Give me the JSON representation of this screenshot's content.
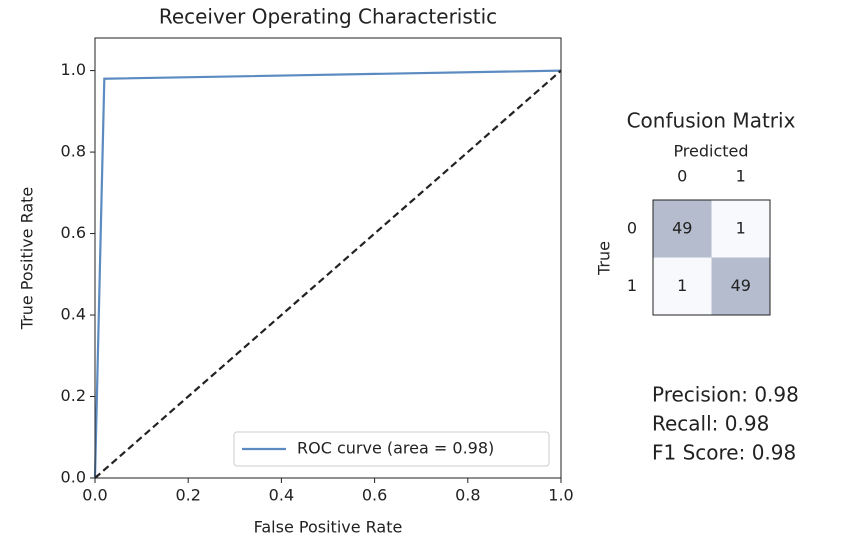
{
  "chart_data": [
    {
      "type": "line",
      "title": "Receiver Operating Characteristic",
      "xlabel": "False Positive Rate",
      "ylabel": "True Positive Rate",
      "x": [
        0,
        0.02,
        1
      ],
      "series": [
        {
          "name": "ROC curve (area = 0.98)",
          "color": "#5b8bc0",
          "values": [
            0,
            0.98,
            1
          ]
        },
        {
          "color": "#222222",
          "dash": true,
          "values": [
            0,
            0.02,
            1
          ]
        }
      ],
      "xlim": [
        0,
        1
      ],
      "ylim": [
        0,
        1.08
      ],
      "xticks": [
        {
          "value": 0,
          "label": "0.0"
        },
        0.2,
        0.4,
        0.6,
        0.8,
        {
          "value": 1,
          "label": "1.0"
        }
      ],
      "yticks": [
        {
          "value": 0,
          "label": "0.0"
        },
        0.2,
        0.4,
        0.6,
        0.8,
        {
          "value": 1,
          "label": "1.0"
        }
      ],
      "legend": "lower right"
    },
    {
      "type": "heatmap",
      "title": "Confusion Matrix",
      "xlabel": "Predicted",
      "ylabel": "True",
      "x": [
        "0",
        "1"
      ],
      "y": [
        "0",
        "1"
      ],
      "values": [
        [
          49,
          1
        ],
        [
          1,
          49
        ]
      ],
      "colors": [
        "#f7f9fc",
        "#b4bccd"
      ]
    }
  ],
  "metrics": [
    "Precision: 0.98",
    "Recall: 0.98",
    "F1 Score: 0.98"
  ]
}
